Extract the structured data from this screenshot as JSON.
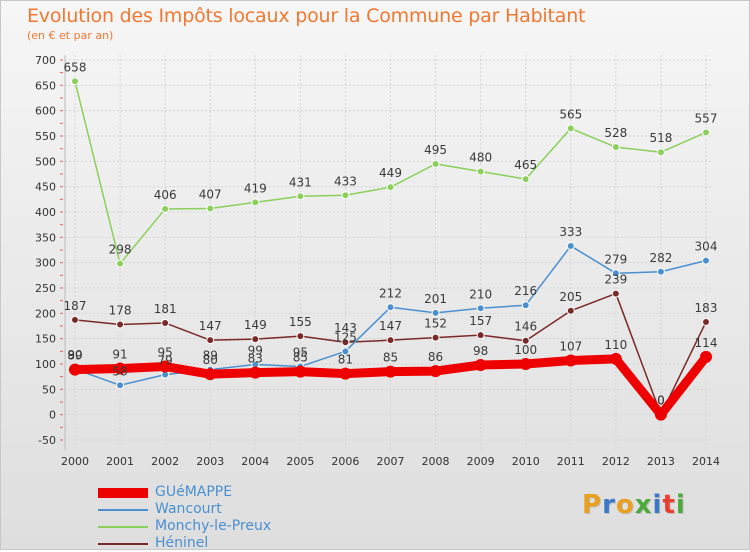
{
  "header": {
    "title": "Evolution des Impôts locaux pour la Commune par Habitant",
    "subtitle": "(en € et par an)"
  },
  "logo": {
    "text": "Proxiti",
    "colors": [
      "#e8a020",
      "#3a78c8",
      "#e8a020",
      "#4caa3c",
      "#3a78c8",
      "#e84030",
      "#4caa3c"
    ]
  },
  "chart_data": {
    "type": "line",
    "x": [
      2000,
      2001,
      2002,
      2003,
      2004,
      2005,
      2006,
      2007,
      2008,
      2009,
      2010,
      2011,
      2012,
      2013,
      2014
    ],
    "ylim": [
      -50,
      700
    ],
    "yticks": [
      -50,
      0,
      50,
      100,
      150,
      200,
      250,
      300,
      350,
      400,
      450,
      500,
      550,
      600,
      650,
      700
    ],
    "grid": true,
    "legend_position": "bottom-left",
    "series": [
      {
        "name": "GUéMAPPE",
        "color": "#ee0000",
        "values": [
          89,
          91,
          95,
          80,
          83,
          85,
          81,
          85,
          86,
          98,
          100,
          107,
          110,
          0,
          114
        ],
        "labels": [
          "89",
          "91",
          "95",
          "80",
          "83",
          "85",
          "81",
          "85",
          "86",
          "98",
          "100",
          "107",
          "110",
          "0",
          "114"
        ]
      },
      {
        "name": "Wancourt",
        "color": "#4a90d0",
        "values": [
          90,
          58,
          79,
          89,
          99,
          95,
          125,
          212,
          201,
          210,
          216,
          333,
          279,
          282,
          304
        ],
        "labels": [
          "90",
          "58",
          "79",
          "89",
          "99",
          "95",
          "125",
          "212",
          "201",
          "210",
          "216",
          "333",
          "279",
          "282",
          "304"
        ]
      },
      {
        "name": "Monchy-le-Preux",
        "color": "#8ad05a",
        "values": [
          658,
          298,
          406,
          407,
          419,
          431,
          433,
          449,
          495,
          480,
          465,
          565,
          528,
          518,
          557
        ],
        "labels": [
          "658",
          "298",
          "406",
          "407",
          "419",
          "431",
          "433",
          "449",
          "495",
          "480",
          "465",
          "565",
          "528",
          "518",
          "557"
        ]
      },
      {
        "name": "Héninel",
        "color": "#7a2828",
        "values": [
          187,
          178,
          181,
          147,
          149,
          155,
          143,
          147,
          152,
          157,
          146,
          205,
          239,
          0,
          183
        ],
        "labels": [
          "187",
          "178",
          "181",
          "147",
          "149",
          "155",
          "143",
          "147",
          "152",
          "157",
          "146",
          "205",
          "239",
          "0",
          "183"
        ]
      }
    ]
  }
}
